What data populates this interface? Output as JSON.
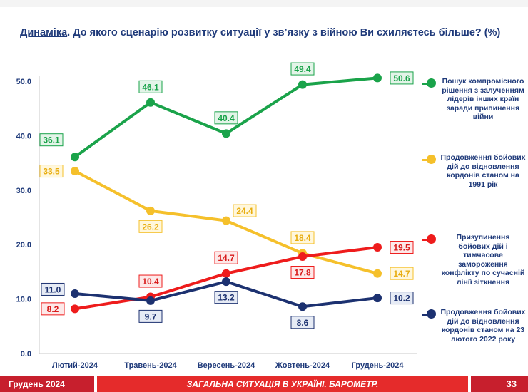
{
  "title": {
    "lead": "Динаміка",
    "text": ". До якого сценарію розвитку ситуації у зв’язку з війною Ви схиляєтесь більше? (%)"
  },
  "chart_data": {
    "type": "line",
    "categories": [
      "Лютий-2024",
      "Травень-2024",
      "Вересень-2024",
      "Жовтень-2024",
      "Грудень-2024"
    ],
    "ylim": [
      0,
      50
    ],
    "yticks": [
      "0.0",
      "10.0",
      "20.0",
      "30.0",
      "40.0",
      "50.0"
    ],
    "grid": false,
    "legend_position": "right",
    "series": [
      {
        "name": "Пошук компромісного рішення з залученням лідерів інших країн заради припинення війни",
        "color": "#1aa34a",
        "values": [
          36.1,
          46.1,
          40.4,
          49.4,
          50.6
        ],
        "labels": [
          "36.1",
          "46.1",
          "40.4",
          "49.4",
          "50.6"
        ]
      },
      {
        "name": "Продовження бойових дій до відновлення кордонів станом на 1991 рік",
        "color": "#f5c02b",
        "values": [
          33.5,
          26.2,
          24.4,
          18.4,
          14.7
        ],
        "labels": [
          "33.5",
          "26.2",
          "24.4",
          "18.4",
          "14.7"
        ]
      },
      {
        "name": "Призупинення бойових дій і тимчасове замороження конфлікту по сучасній лінії зіткнення",
        "color": "#ee1c1c",
        "values": [
          8.2,
          10.4,
          14.7,
          17.8,
          19.5
        ],
        "labels": [
          "8.2",
          "10.4",
          "14.7",
          "17.8",
          "19.5"
        ]
      },
      {
        "name": "Продовження бойових дій до відновлення кордонів станом на 23 лютого 2022 року",
        "color": "#1c3170",
        "values": [
          11.0,
          9.7,
          13.2,
          8.6,
          10.2
        ],
        "labels": [
          "11.0",
          "9.7",
          "13.2",
          "8.6",
          "10.2"
        ]
      }
    ]
  },
  "footer": {
    "date": "Грудень 2024",
    "caption": "ЗАГАЛЬНА СИТУАЦІЯ В УКРАЇНІ. БАРОМЕТР.",
    "page": "33"
  }
}
